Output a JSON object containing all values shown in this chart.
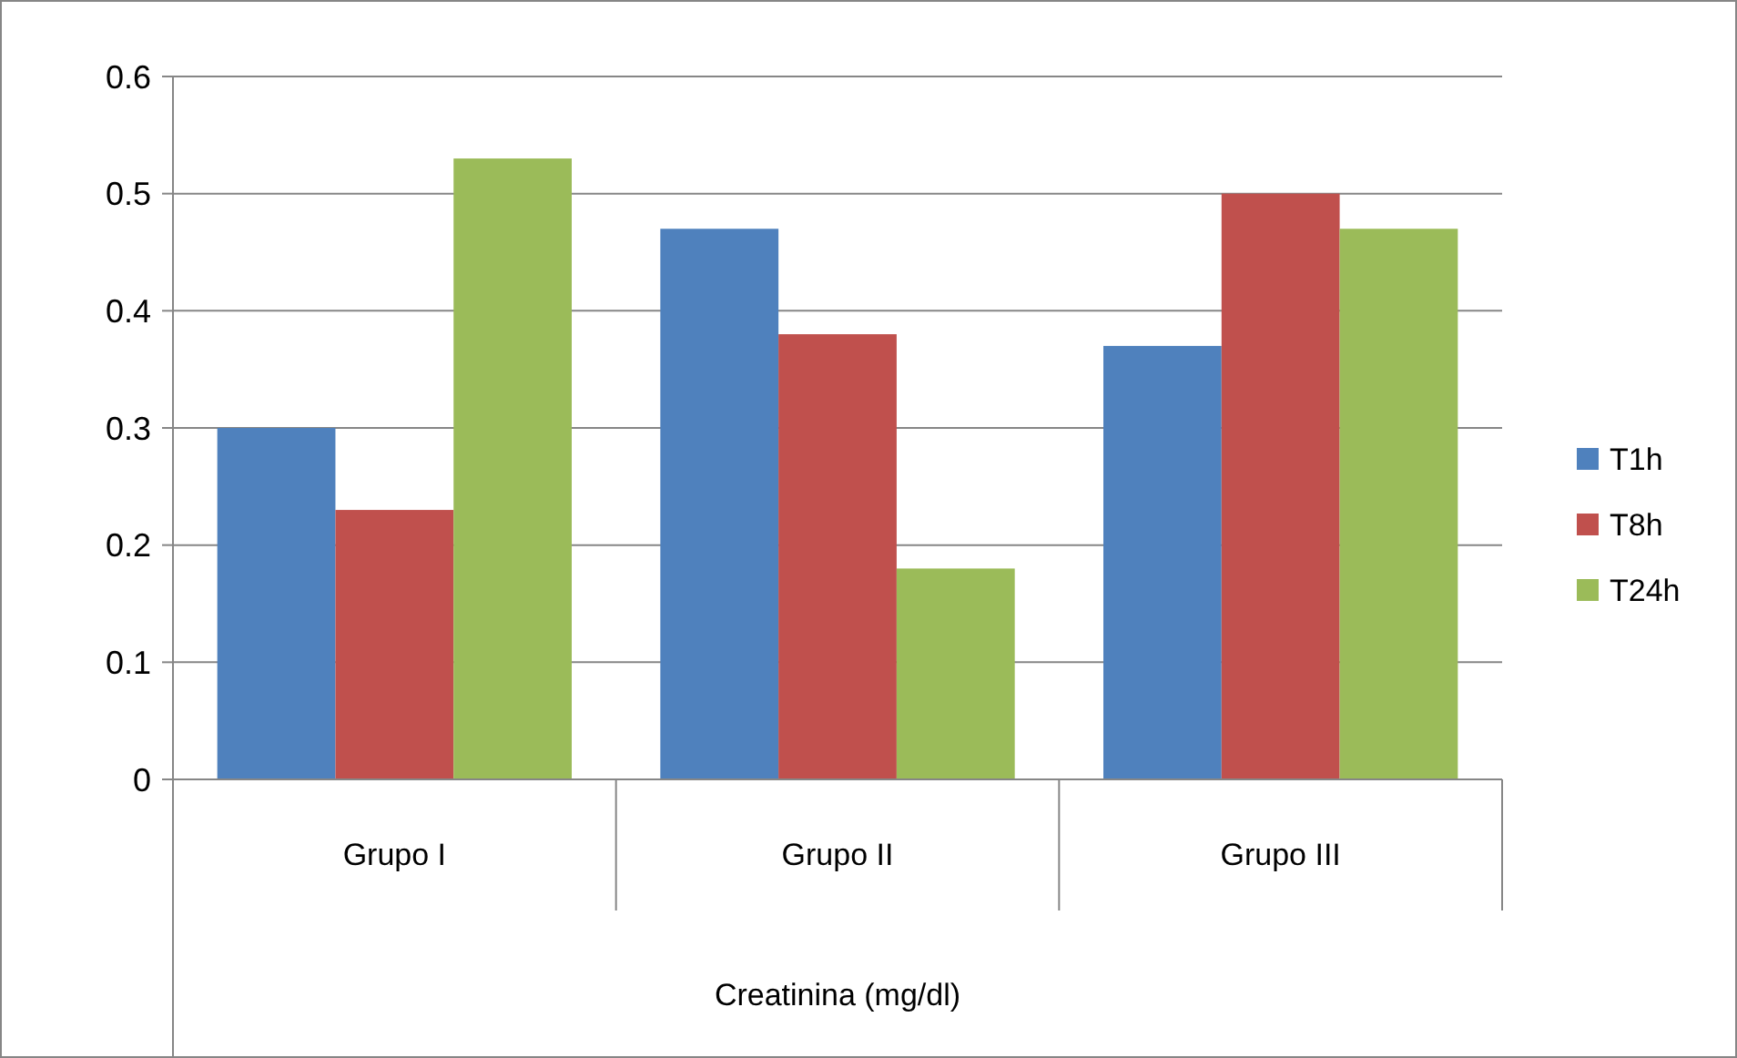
{
  "chart_data": {
    "type": "bar",
    "xlabel": "Creatinina (mg/dl)",
    "categories": [
      "Grupo I",
      "Grupo II",
      "Grupo III"
    ],
    "series": [
      {
        "name": "T1h",
        "color": "#4f81bd",
        "values": [
          0.3,
          0.47,
          0.37
        ]
      },
      {
        "name": "T8h",
        "color": "#c0504d",
        "values": [
          0.23,
          0.38,
          0.5
        ]
      },
      {
        "name": "T24h",
        "color": "#9bbb59",
        "values": [
          0.53,
          0.18,
          0.47
        ]
      }
    ],
    "ylim": [
      0,
      0.6
    ],
    "yticks": [
      0,
      {
        "value": 0.1,
        "label": "0.1"
      },
      {
        "value": 0.2,
        "label": "0.2"
      },
      {
        "value": 0.3,
        "label": "0.3"
      },
      {
        "value": 0.4,
        "label": "0.4"
      },
      {
        "value": 0.5,
        "label": "0.5"
      },
      {
        "value": 0.6,
        "label": "0.6"
      }
    ],
    "grid": "y",
    "legend": "right"
  }
}
